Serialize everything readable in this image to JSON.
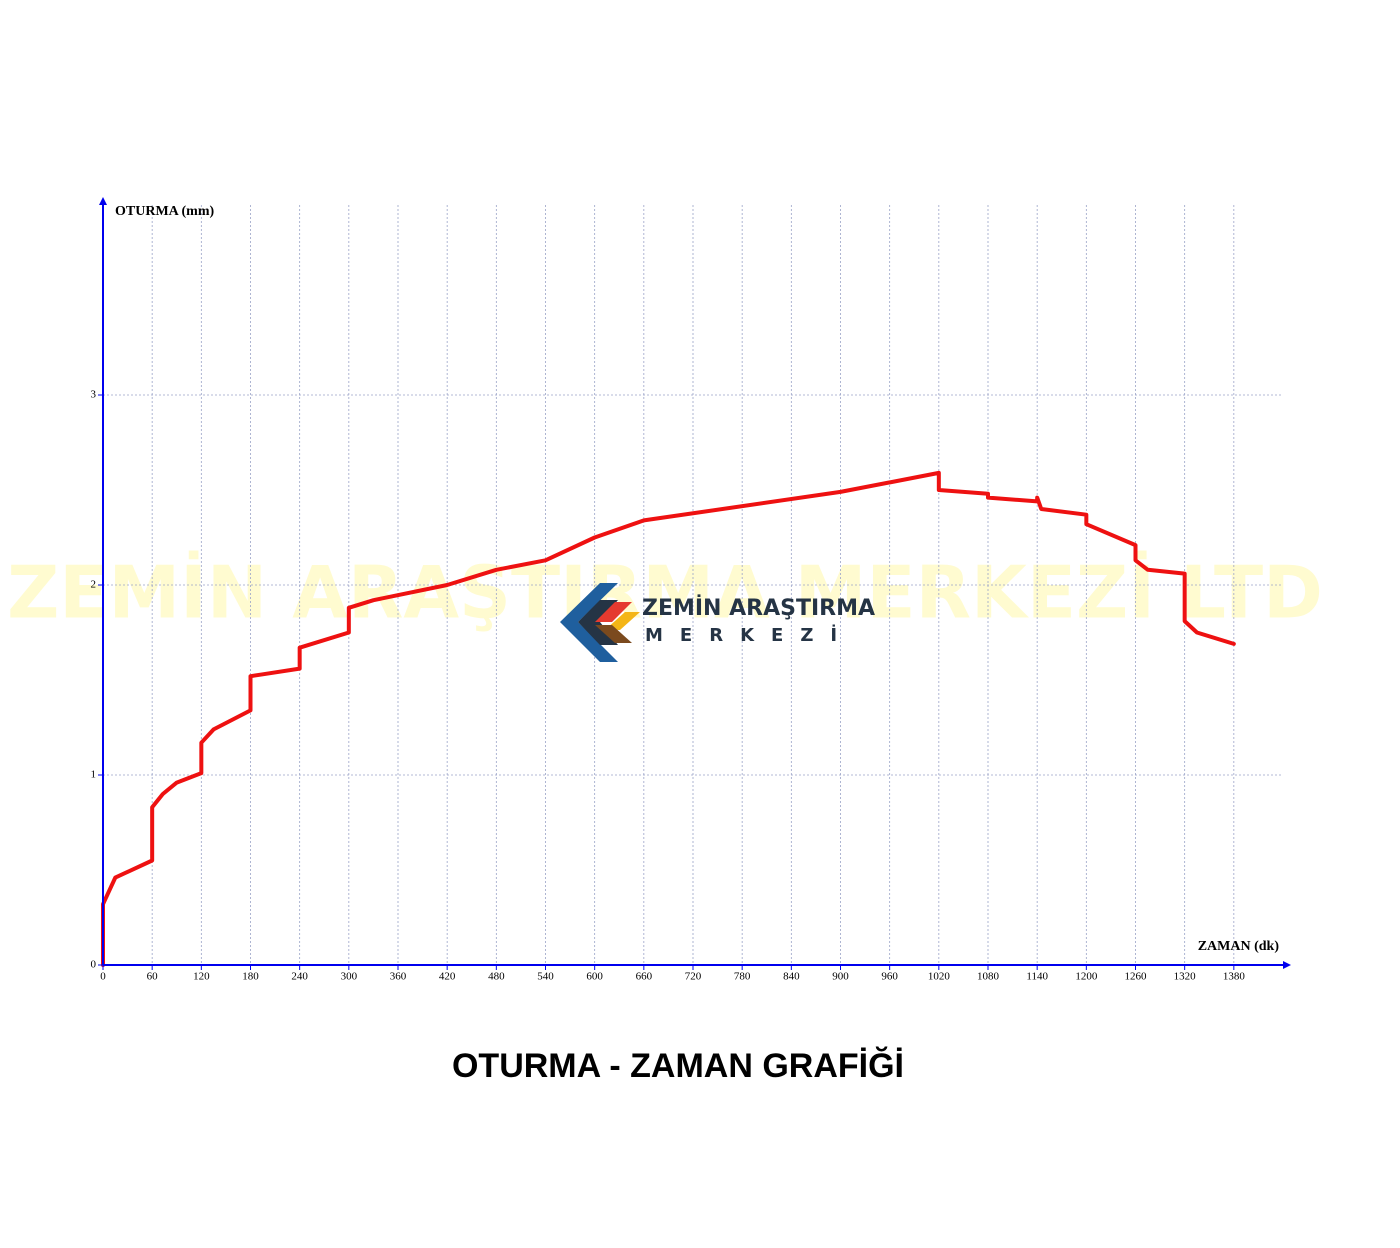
{
  "chart_data": {
    "type": "line",
    "title": "OTURMA - ZAMAN GRAFİĞİ",
    "x_label": "ZAMAN (dk)",
    "y_label": "OTURMA (mm)",
    "x": [
      0,
      0,
      15,
      60,
      60,
      73,
      90,
      120,
      120,
      135,
      180,
      180,
      195,
      240,
      240,
      300,
      300,
      330,
      420,
      480,
      540,
      600,
      660,
      900,
      1020,
      1020,
      1080,
      1080,
      1140,
      1140,
      1145,
      1200,
      1200,
      1260,
      1260,
      1275,
      1320,
      1320,
      1335,
      1380
    ],
    "series": [
      {
        "name": "OTURMA",
        "color": "#ee1111",
        "values": [
          0,
          0.32,
          0.46,
          0.55,
          0.83,
          0.9,
          0.96,
          1.01,
          1.17,
          1.24,
          1.34,
          1.52,
          1.53,
          1.56,
          1.67,
          1.75,
          1.88,
          1.92,
          2.0,
          2.08,
          2.13,
          2.25,
          2.34,
          2.49,
          2.59,
          2.5,
          2.48,
          2.46,
          2.44,
          2.46,
          2.4,
          2.37,
          2.32,
          2.21,
          2.13,
          2.08,
          2.06,
          1.81,
          1.75,
          1.69
        ]
      }
    ],
    "xlim": [
      0,
      1440
    ],
    "ylim": [
      0,
      4
    ],
    "xticks": [
      0,
      60,
      120,
      180,
      240,
      300,
      360,
      420,
      480,
      540,
      600,
      660,
      720,
      780,
      840,
      900,
      960,
      1020,
      1080,
      1140,
      1200,
      1260,
      1320,
      1380
    ],
    "yticks": [
      0,
      1,
      2,
      3
    ],
    "grid": true,
    "axis_color": "#0000ee"
  },
  "watermark": "ZEMİN ARAŞTIRMA MERKEZİ LTD",
  "logo": {
    "line1": "ZEMİN ARAŞTIRMA",
    "line2": "MERKEZİ"
  }
}
